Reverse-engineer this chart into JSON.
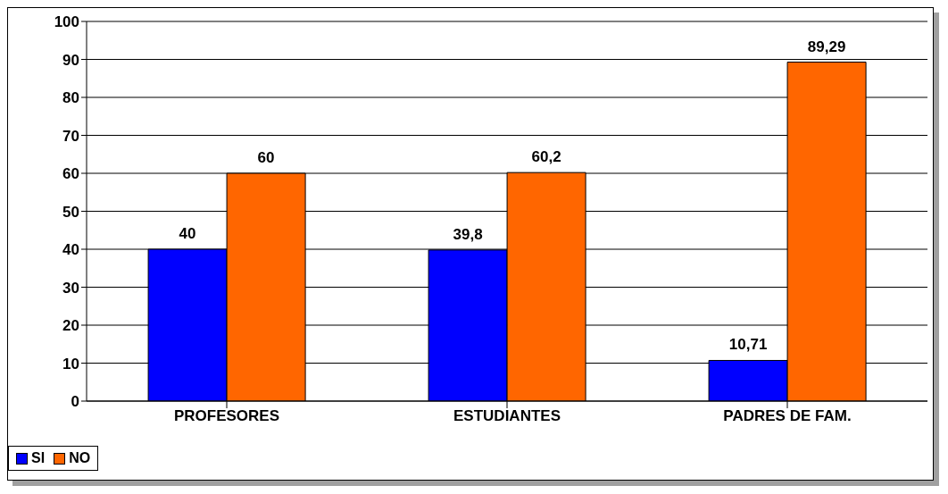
{
  "chart_data": {
    "type": "bar",
    "categories": [
      "PROFESORES",
      "ESTUDIANTES",
      "PADRES DE FAM."
    ],
    "series": [
      {
        "name": "SI",
        "color": "#0000ff",
        "values": [
          40,
          39.8,
          10.71
        ],
        "value_labels": [
          "40",
          "39,8",
          "10,71"
        ]
      },
      {
        "name": "NO",
        "color": "#ff6600",
        "values": [
          60,
          60.2,
          89.29
        ],
        "value_labels": [
          "60",
          "60,2",
          "89,29"
        ]
      }
    ],
    "ylim": [
      0,
      100
    ],
    "yticks": [
      0,
      10,
      20,
      30,
      40,
      50,
      60,
      70,
      80,
      90,
      100
    ],
    "grid": "y",
    "legend": "bottom"
  }
}
